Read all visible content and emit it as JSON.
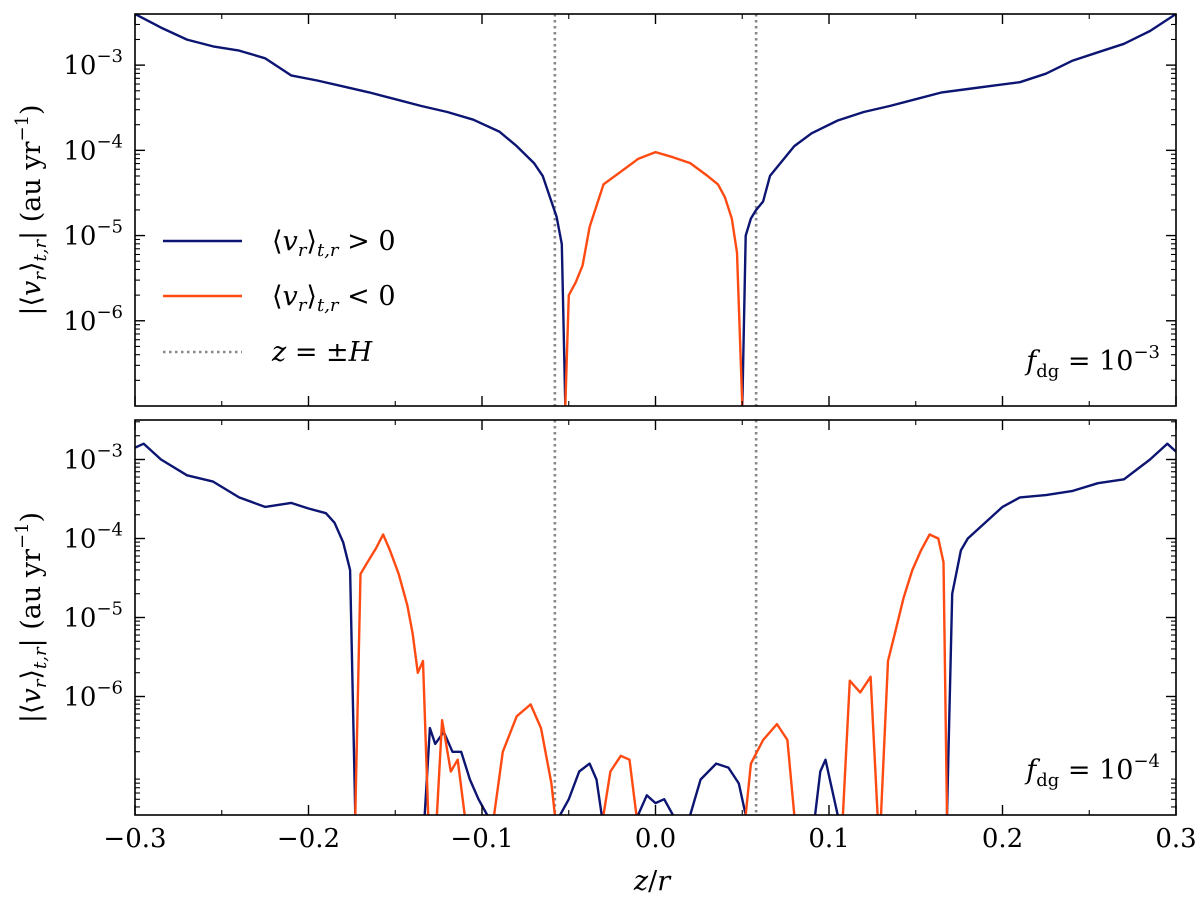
{
  "chart_data": [
    {
      "type": "line",
      "panel": "top",
      "xlabel": "z/r",
      "ylabel": "|⟨v_r⟩_{t,r}| (au yr^-1)",
      "xlim": [
        -0.3,
        0.3
      ],
      "ylim_exponent": [
        -7.0,
        -2.4
      ],
      "yscale": "log",
      "x_ticks": [
        "−0.3",
        "−0.2",
        "−0.1",
        "0.0",
        "0.1",
        "0.2",
        "0.3"
      ],
      "y_ticks": [
        {
          "exp": -3,
          "label": "10",
          "sup": "−3"
        },
        {
          "exp": -4,
          "label": "10",
          "sup": "−4"
        },
        {
          "exp": -5,
          "label": "10",
          "sup": "−5"
        },
        {
          "exp": -6,
          "label": "10",
          "sup": "−6"
        }
      ],
      "vlines": [
        -0.058,
        0.058
      ],
      "annotation": {
        "text": "f",
        "sub": "dg",
        "rest": " = 10",
        "sup": "−3"
      },
      "legend": {
        "position": "center-left",
        "entries": [
          {
            "label": "⟨v_r⟩_{t,r} > 0",
            "color": "#0d1572",
            "style": "solid"
          },
          {
            "label": "⟨v_r⟩_{t,r} < 0",
            "color": "#ff4a12",
            "style": "solid"
          },
          {
            "label": "z = ±H",
            "color": "#888888",
            "style": "dotted"
          }
        ]
      },
      "series": [
        {
          "name": "⟨v_r⟩_{t,r} > 0",
          "color": "#0d1572",
          "segments": [
            {
              "x": [
                -0.3,
                -0.285,
                -0.27,
                -0.255,
                -0.24,
                -0.225,
                -0.21,
                -0.195,
                -0.18,
                -0.165,
                -0.15,
                -0.135,
                -0.12,
                -0.105,
                -0.09,
                -0.08,
                -0.07,
                -0.065,
                -0.06,
                -0.057,
                -0.054,
                -0.052
              ],
              "y": [
                -2.4,
                -2.56,
                -2.7,
                -2.78,
                -2.83,
                -2.92,
                -3.12,
                -3.18,
                -3.25,
                -3.32,
                -3.4,
                -3.48,
                -3.55,
                -3.64,
                -3.78,
                -3.95,
                -4.15,
                -4.3,
                -4.6,
                -4.78,
                -5.1,
                -7.0
              ]
            },
            {
              "x": [
                0.05,
                0.052,
                0.055,
                0.058,
                0.062,
                0.066,
                0.072,
                0.08,
                0.09,
                0.105,
                0.12,
                0.135,
                0.15,
                0.165,
                0.18,
                0.195,
                0.21,
                0.225,
                0.24,
                0.255,
                0.27,
                0.285,
                0.3
              ],
              "y": [
                -7.0,
                -5.0,
                -4.8,
                -4.7,
                -4.6,
                -4.3,
                -4.15,
                -3.95,
                -3.8,
                -3.65,
                -3.55,
                -3.48,
                -3.4,
                -3.32,
                -3.28,
                -3.24,
                -3.2,
                -3.1,
                -2.95,
                -2.85,
                -2.75,
                -2.6,
                -2.4
              ]
            }
          ]
        },
        {
          "name": "⟨v_r⟩_{t,r} < 0",
          "color": "#ff4a12",
          "segments": [
            {
              "x": [
                -0.052,
                -0.05,
                -0.046,
                -0.042,
                -0.038,
                -0.03,
                -0.02,
                -0.01,
                0.0,
                0.01,
                0.02,
                0.03,
                0.036,
                0.04,
                0.044,
                0.047,
                0.05
              ],
              "y": [
                -7.0,
                -5.7,
                -5.55,
                -5.35,
                -4.9,
                -4.4,
                -4.25,
                -4.1,
                -4.02,
                -4.08,
                -4.15,
                -4.3,
                -4.4,
                -4.55,
                -4.8,
                -5.2,
                -7.0
              ]
            }
          ]
        }
      ]
    },
    {
      "type": "line",
      "panel": "bottom",
      "xlabel": "z/r",
      "ylabel": "|⟨v_r⟩_{t,r}| (au yr^-1)",
      "xlim": [
        -0.3,
        0.3
      ],
      "ylim_exponent": [
        -7.5,
        -2.5
      ],
      "yscale": "log",
      "x_ticks": [
        "−0.3",
        "−0.2",
        "−0.1",
        "0.0",
        "0.1",
        "0.2",
        "0.3"
      ],
      "y_ticks": [
        {
          "exp": -3,
          "label": "10",
          "sup": "−3"
        },
        {
          "exp": -4,
          "label": "10",
          "sup": "−4"
        },
        {
          "exp": -5,
          "label": "10",
          "sup": "−5"
        },
        {
          "exp": -6,
          "label": "10",
          "sup": "−6"
        }
      ],
      "vlines": [
        -0.058,
        0.058
      ],
      "annotation": {
        "text": "f",
        "sub": "dg",
        "rest": " = 10",
        "sup": "−4"
      },
      "series": [
        {
          "name": "⟨v_r⟩_{t,r} > 0",
          "color": "#0d1572",
          "segments": [
            {
              "x": [
                -0.3,
                -0.295,
                -0.285,
                -0.27,
                -0.255,
                -0.24,
                -0.225,
                -0.21,
                -0.2,
                -0.19,
                -0.185,
                -0.18,
                -0.176,
                -0.173
              ],
              "y": [
                -2.85,
                -2.8,
                -3.0,
                -3.2,
                -3.28,
                -3.48,
                -3.6,
                -3.55,
                -3.62,
                -3.68,
                -3.8,
                -4.05,
                -4.4,
                -7.5
              ]
            },
            {
              "x": [
                -0.133,
                -0.13,
                -0.127,
                -0.122,
                -0.117,
                -0.112,
                -0.107,
                -0.102,
                -0.097
              ],
              "y": [
                -7.5,
                -6.4,
                -6.6,
                -6.45,
                -6.7,
                -6.7,
                -7.05,
                -7.3,
                -7.5
              ]
            },
            {
              "x": [
                -0.055,
                -0.05,
                -0.044,
                -0.038,
                -0.034,
                -0.031
              ],
              "y": [
                -7.5,
                -7.3,
                -6.95,
                -6.85,
                -7.05,
                -7.5
              ]
            },
            {
              "x": [
                -0.01,
                -0.005,
                0.0,
                0.005,
                0.01
              ],
              "y": [
                -7.5,
                -7.25,
                -7.35,
                -7.3,
                -7.5
              ]
            },
            {
              "x": [
                0.02,
                0.026,
                0.035,
                0.042,
                0.048,
                0.052
              ],
              "y": [
                -7.5,
                -7.05,
                -6.85,
                -6.9,
                -7.1,
                -7.5
              ]
            },
            {
              "x": [
                0.092,
                0.095,
                0.098,
                0.101,
                0.105
              ],
              "y": [
                -7.5,
                -6.95,
                -6.8,
                -7.1,
                -7.5
              ]
            },
            {
              "x": [
                0.168,
                0.171,
                0.176,
                0.18,
                0.19,
                0.2,
                0.21,
                0.225,
                0.24,
                0.255,
                0.27,
                0.285,
                0.295,
                0.3
              ],
              "y": [
                -7.5,
                -4.7,
                -4.15,
                -4.0,
                -3.8,
                -3.6,
                -3.48,
                -3.45,
                -3.4,
                -3.3,
                -3.25,
                -3.0,
                -2.8,
                -2.9
              ]
            }
          ]
        },
        {
          "name": "⟨v_r⟩_{t,r} < 0",
          "color": "#ff4a12",
          "segments": [
            {
              "x": [
                -0.173,
                -0.17,
                -0.166,
                -0.161,
                -0.157,
                -0.153,
                -0.148,
                -0.143,
                -0.14,
                -0.137,
                -0.134,
                -0.131
              ],
              "y": [
                -7.5,
                -4.45,
                -4.3,
                -4.12,
                -3.95,
                -4.15,
                -4.45,
                -4.85,
                -5.2,
                -5.7,
                -5.55,
                -7.5
              ]
            },
            {
              "x": [
                -0.126,
                -0.123,
                -0.118,
                -0.114,
                -0.11
              ],
              "y": [
                -7.5,
                -6.3,
                -6.95,
                -6.8,
                -7.5
              ]
            },
            {
              "x": [
                -0.093,
                -0.088,
                -0.08,
                -0.072,
                -0.066,
                -0.06,
                -0.058
              ],
              "y": [
                -7.5,
                -6.7,
                -6.25,
                -6.1,
                -6.4,
                -7.1,
                -7.5
              ]
            },
            {
              "x": [
                -0.03,
                -0.026,
                -0.02,
                -0.015,
                -0.011
              ],
              "y": [
                -7.5,
                -6.95,
                -6.75,
                -6.8,
                -7.5
              ]
            },
            {
              "x": [
                0.052,
                0.055,
                0.062,
                0.07,
                0.076,
                0.08
              ],
              "y": [
                -7.5,
                -6.85,
                -6.55,
                -6.35,
                -6.55,
                -7.5
              ]
            },
            {
              "x": [
                0.108,
                0.112,
                0.118,
                0.124,
                0.128
              ],
              "y": [
                -7.5,
                -5.8,
                -5.95,
                -5.75,
                -7.5
              ]
            },
            {
              "x": [
                0.13,
                0.134,
                0.138,
                0.143,
                0.148,
                0.153,
                0.158,
                0.163,
                0.166,
                0.168
              ],
              "y": [
                -7.5,
                -5.55,
                -5.2,
                -4.75,
                -4.4,
                -4.15,
                -3.95,
                -4.0,
                -4.3,
                -7.5
              ]
            }
          ]
        }
      ]
    }
  ]
}
